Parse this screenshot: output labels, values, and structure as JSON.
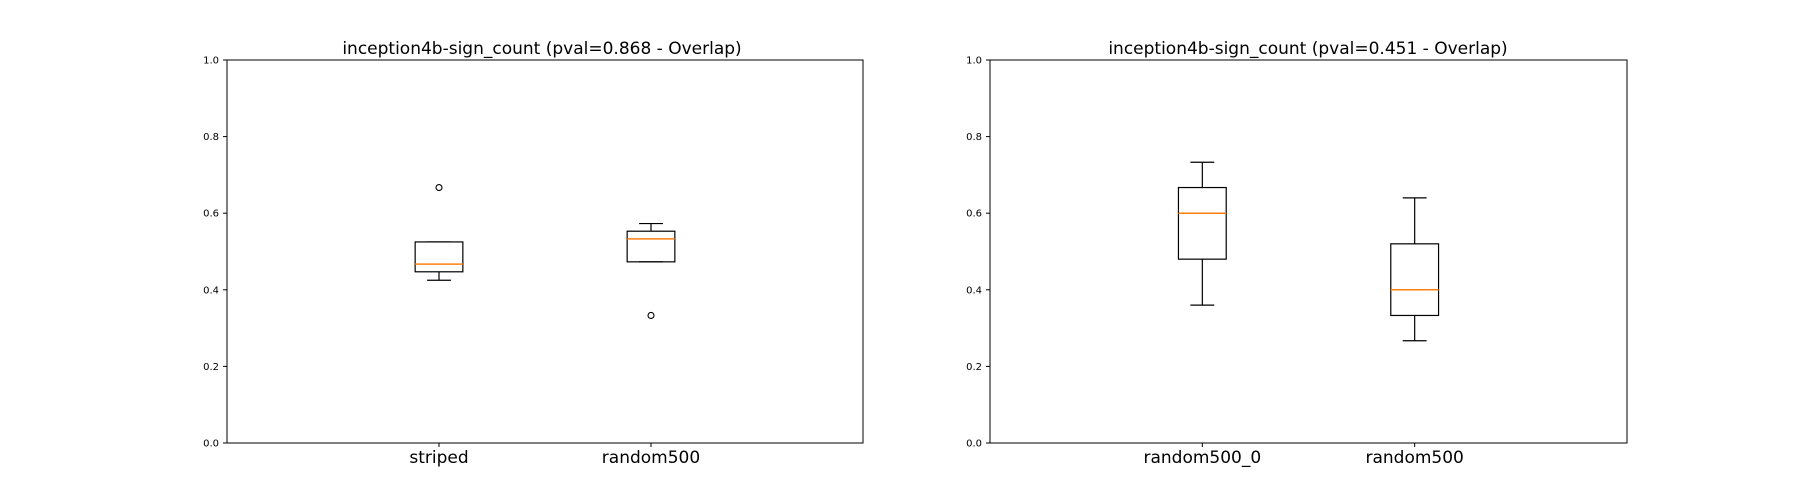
{
  "chart_data": [
    {
      "type": "box",
      "title": "inception4b-sign_count (pval=0.868 - Overlap)",
      "xlabel": "",
      "ylabel": "",
      "ylim": [
        0.0,
        1.0
      ],
      "yticks": [
        "0.0",
        "0.2",
        "0.4",
        "0.6",
        "0.8",
        "1.0"
      ],
      "grid": false,
      "categories": [
        "striped",
        "random500"
      ],
      "boxes": [
        {
          "whisker_low": 0.425,
          "q1": 0.447,
          "median": 0.467,
          "q3": 0.525,
          "whisker_high": 0.525,
          "outliers": [
            0.667
          ]
        },
        {
          "whisker_low": 0.473,
          "q1": 0.473,
          "median": 0.533,
          "q3": 0.553,
          "whisker_high": 0.573,
          "outliers": [
            0.333
          ]
        }
      ],
      "colors": {
        "box": "#000000",
        "median": "#ff7f0e"
      }
    },
    {
      "type": "box",
      "title": "inception4b-sign_count (pval=0.451 - Overlap)",
      "xlabel": "",
      "ylabel": "",
      "ylim": [
        0.0,
        1.0
      ],
      "yticks": [
        "0.0",
        "0.2",
        "0.4",
        "0.6",
        "0.8",
        "1.0"
      ],
      "grid": false,
      "categories": [
        "random500_0",
        "random500"
      ],
      "boxes": [
        {
          "whisker_low": 0.36,
          "q1": 0.48,
          "median": 0.6,
          "q3": 0.667,
          "whisker_high": 0.733,
          "outliers": []
        },
        {
          "whisker_low": 0.267,
          "q1": 0.333,
          "median": 0.4,
          "q3": 0.52,
          "whisker_high": 0.64,
          "outliers": []
        }
      ],
      "colors": {
        "box": "#000000",
        "median": "#ff7f0e"
      }
    }
  ]
}
